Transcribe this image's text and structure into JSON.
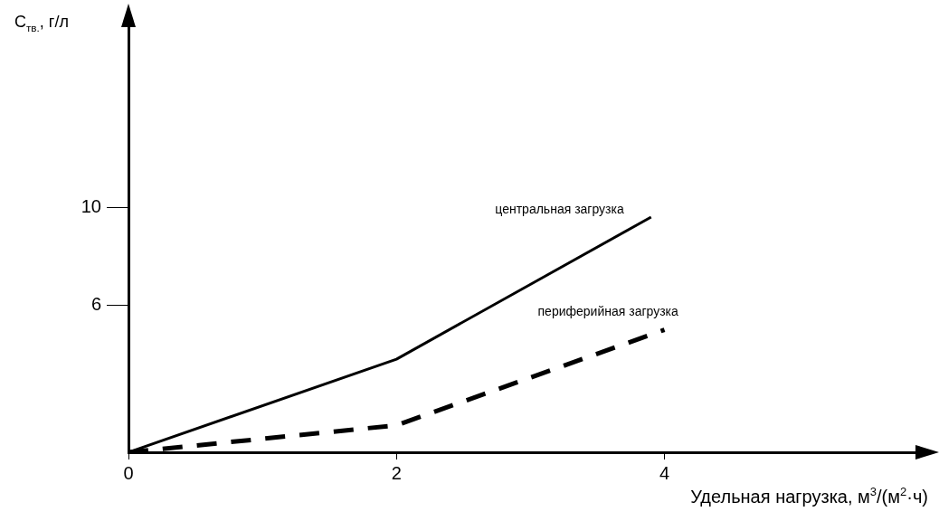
{
  "chart_data": {
    "type": "line",
    "xlabel": "Удельная нагрузка, м$^{3}$/(м$^{2}$·ч)",
    "ylabel": "C$_{тв.}$, г/л",
    "series": [
      {
        "name": "центральная загрузка",
        "color": "#000000",
        "x": [
          0,
          2,
          3.9
        ],
        "values": [
          0,
          3.8,
          9.6
        ],
        "line_style": "solid"
      },
      {
        "name": "периферийная загрузка",
        "color": "#000000",
        "x": [
          0,
          2,
          4
        ],
        "values": [
          0,
          1.1,
          5
        ],
        "line_style": "dashed"
      }
    ],
    "xlim": [
      0,
      5.9
    ],
    "ylim": [
      0,
      17.5
    ],
    "xticks": [
      0,
      2,
      4
    ],
    "yticks": [
      6,
      10
    ],
    "grid": false,
    "legend": false,
    "marker": "none"
  }
}
